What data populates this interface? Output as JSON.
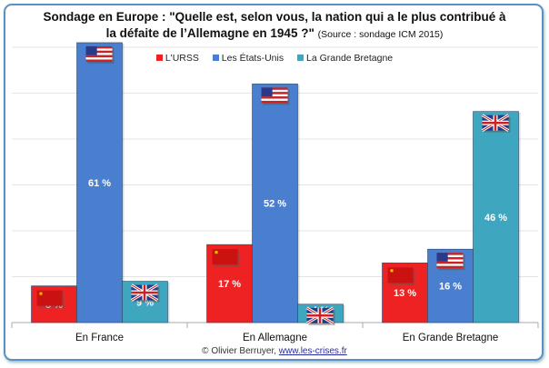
{
  "chart_data": {
    "type": "bar",
    "title_line1": "Sondage en Europe : \"Quelle est, selon vous, la nation qui a le plus contribué à",
    "title_line2": "la défaite de l’Allemagne en 1945 ?\"",
    "source": "(Source : sondage ICM 2015)",
    "categories": [
      "En France",
      "En Allemagne",
      "En Grande Bretagne"
    ],
    "series": [
      {
        "name": "L'URSS",
        "color": "#ee2222",
        "flag": "ussr-flag",
        "values": [
          8,
          17,
          13
        ]
      },
      {
        "name": "Les États-Unis",
        "color": "#4a7fd0",
        "flag": "usa-flag",
        "values": [
          61,
          52,
          16
        ]
      },
      {
        "name": "La Grande Bretagne",
        "color": "#3fa6c0",
        "flag": "uk-flag",
        "values": [
          9,
          4,
          46
        ]
      }
    ],
    "value_suffix": " %",
    "ylim": [
      0,
      70
    ],
    "grid": true,
    "legend": "top"
  },
  "credit": {
    "author": "© Olivier Berruyer,",
    "link": "www.les-crises.fr"
  }
}
